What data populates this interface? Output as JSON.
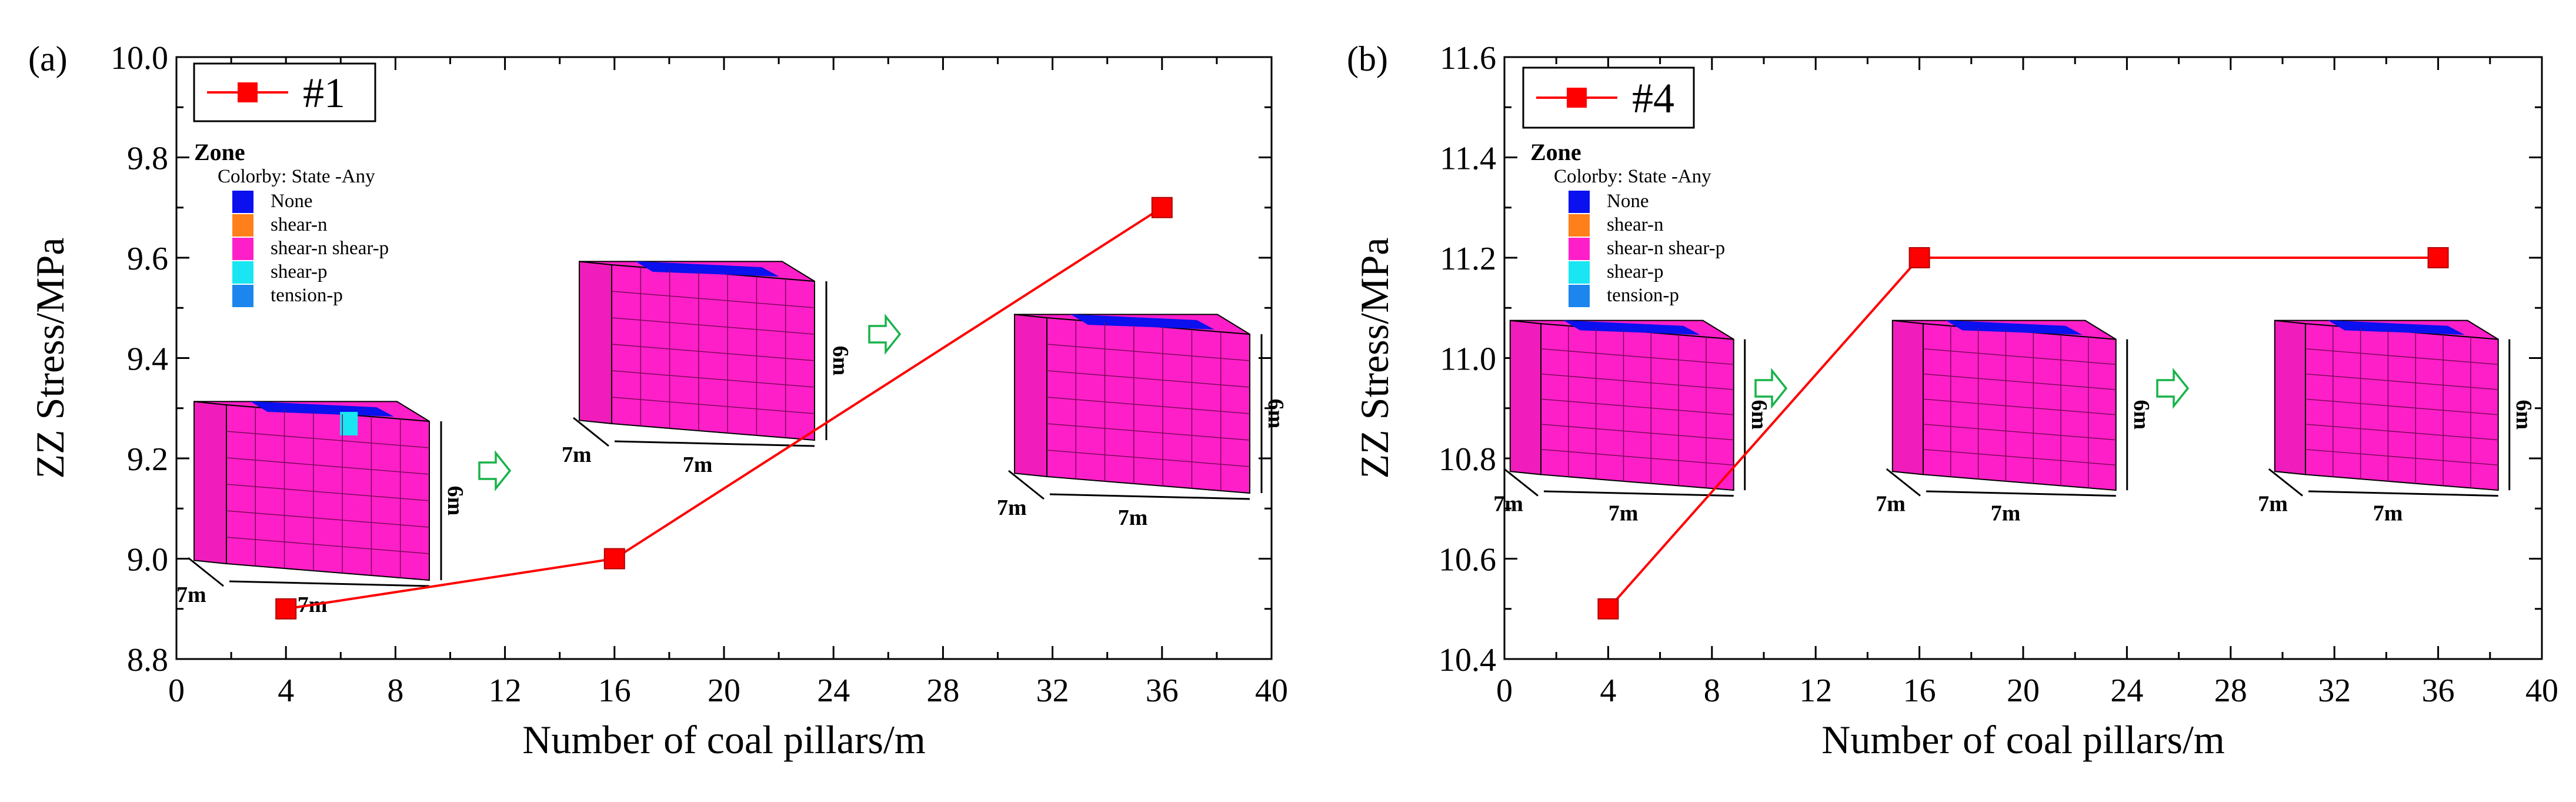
{
  "chart_data": [
    {
      "type": "line",
      "panel_label": "(a)",
      "title": "",
      "xlabel": "Number of coal pillars/m",
      "ylabel": "ZZ Stress/MPa",
      "xlim": [
        0,
        40
      ],
      "ylim": [
        8.8,
        10.0
      ],
      "xticks": [
        "0",
        "4",
        "8",
        "12",
        "16",
        "20",
        "24",
        "28",
        "32",
        "36",
        "40"
      ],
      "yticks": [
        "8.8",
        "9.0",
        "9.2",
        "9.4",
        "9.6",
        "9.8",
        "10.0"
      ],
      "series": [
        {
          "name": "#1",
          "color": "#ff0000",
          "x": [
            4,
            16,
            36
          ],
          "y": [
            8.9,
            9.0,
            9.7
          ]
        }
      ],
      "legend": "top-left",
      "grid": false,
      "colorbar": {
        "title": "Zone",
        "subtitle": "Colorby: State  -Any",
        "entries": [
          {
            "label": "None",
            "color": "#0a10ee"
          },
          {
            "label": "shear-n",
            "color": "#ff7f1a"
          },
          {
            "label": "shear-n shear-p",
            "color": "#ff1fc8"
          },
          {
            "label": "shear-p",
            "color": "#19e6f2"
          },
          {
            "label": "tension-p",
            "color": "#1c86ee"
          }
        ]
      },
      "insets": [
        {
          "width_label": "7m",
          "depth_label": "7m",
          "height_label": "6m"
        },
        {
          "width_label": "7m",
          "depth_label": "7m",
          "height_label": "6m"
        },
        {
          "width_label": "7m",
          "depth_label": "7m",
          "height_label": "6m"
        }
      ]
    },
    {
      "type": "line",
      "panel_label": "(b)",
      "title": "",
      "xlabel": "Number of coal pillars/m",
      "ylabel": "ZZ Stress/MPa",
      "xlim": [
        0,
        40
      ],
      "ylim": [
        10.4,
        11.6
      ],
      "xticks": [
        "0",
        "4",
        "8",
        "12",
        "16",
        "20",
        "24",
        "28",
        "32",
        "36",
        "40"
      ],
      "yticks": [
        "10.4",
        "10.6",
        "10.8",
        "11.0",
        "11.2",
        "11.4",
        "11.6"
      ],
      "series": [
        {
          "name": "#4",
          "color": "#ff0000",
          "x": [
            4,
            16,
            36
          ],
          "y": [
            10.5,
            11.2,
            11.2
          ]
        }
      ],
      "legend": "top-left",
      "grid": false,
      "colorbar": {
        "title": "Zone",
        "subtitle": "Colorby: State  -Any",
        "entries": [
          {
            "label": "None",
            "color": "#0a10ee"
          },
          {
            "label": "shear-n",
            "color": "#ff7f1a"
          },
          {
            "label": "shear-n shear-p",
            "color": "#ff1fc8"
          },
          {
            "label": "shear-p",
            "color": "#19e6f2"
          },
          {
            "label": "tension-p",
            "color": "#1c86ee"
          }
        ]
      },
      "insets": [
        {
          "width_label": "7m",
          "depth_label": "7m",
          "height_label": "6m"
        },
        {
          "width_label": "7m",
          "depth_label": "7m",
          "height_label": "6m"
        },
        {
          "width_label": "7m",
          "depth_label": "7m",
          "height_label": "6m"
        }
      ]
    }
  ]
}
